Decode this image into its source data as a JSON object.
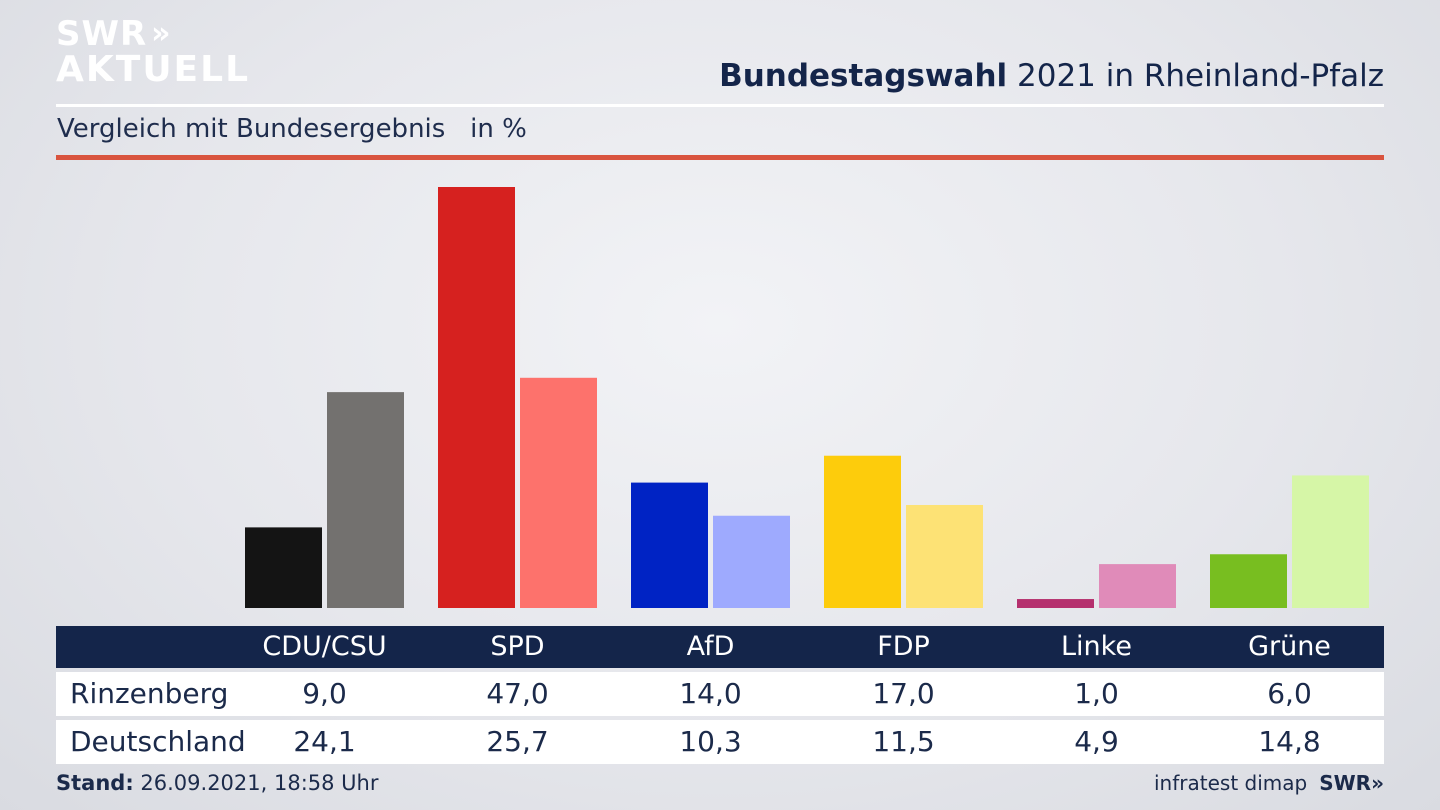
{
  "brand": {
    "line1": "SWR",
    "arrows": "»",
    "line2": "AKTUELL"
  },
  "header": {
    "title_bold": "Bundestagswahl",
    "title_rest": " 2021 in Rheinland-Pfalz"
  },
  "subtitle": "Vergleich mit Bundesergebnis   in %",
  "chart_data": {
    "type": "bar",
    "categories": [
      "CDU/CSU",
      "SPD",
      "AfD",
      "FDP",
      "Linke",
      "Grüne"
    ],
    "series": [
      {
        "name": "Rinzenberg",
        "values": [
          9.0,
          47.0,
          14.0,
          17.0,
          1.0,
          6.0
        ],
        "labels": [
          "9,0",
          "47,0",
          "14,0",
          "17,0",
          "1,0",
          "6,0"
        ],
        "colors": [
          "#141414",
          "#d6211f",
          "#0023c4",
          "#fdcc0c",
          "#b5306e",
          "#78be20"
        ]
      },
      {
        "name": "Deutschland",
        "values": [
          24.1,
          25.7,
          10.3,
          11.5,
          4.9,
          14.8
        ],
        "labels": [
          "24,1",
          "25,7",
          "10,3",
          "11,5",
          "4,9",
          "14,8"
        ],
        "colors": [
          "#73716f",
          "#fd726c",
          "#9eaafe",
          "#fde275",
          "#e08bb9",
          "#d6f6a7"
        ]
      }
    ],
    "ylim": [
      0,
      47
    ],
    "grid": false
  },
  "footer": {
    "stand_label": "Stand:",
    "stand_value": " 26.09.2021, 18:58 Uhr",
    "source": "infratest dimap",
    "brand": "SWR»"
  }
}
